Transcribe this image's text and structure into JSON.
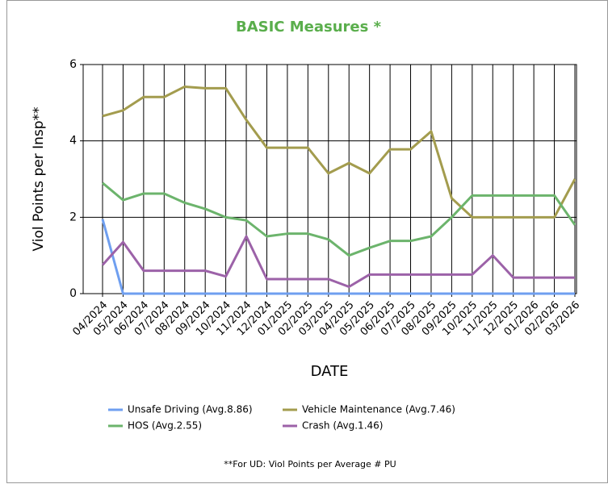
{
  "chart_data": {
    "type": "line",
    "title": "BASIC Measures *",
    "x_label": "DATE",
    "y_label": "Viol Points per Insp**",
    "footnote": "**For UD: Viol Points per Average # PU",
    "categories": [
      "04/2024",
      "05/2024",
      "06/2024",
      "07/2024",
      "08/2024",
      "09/2024",
      "10/2024",
      "11/2024",
      "12/2024",
      "01/2025",
      "02/2025",
      "03/2025",
      "04/2025",
      "05/2025",
      "06/2025",
      "07/2025",
      "08/2025",
      "09/2025",
      "10/2025",
      "11/2025",
      "12/2025",
      "01/2026",
      "02/2026",
      "03/2026"
    ],
    "series": [
      {
        "name": "Unsafe Driving (Avg.8.86)",
        "color": "#6f9ff0",
        "values": [
          1.95,
          0,
          0,
          0,
          0,
          0,
          0,
          0,
          0,
          0,
          0,
          0,
          0,
          0,
          0,
          0,
          0,
          0,
          0,
          0,
          0,
          0,
          0,
          0
        ]
      },
      {
        "name": "Vehicle Maintenance (Avg.7.46)",
        "color": "#a39c4e",
        "values": [
          4.65,
          4.8,
          5.15,
          5.15,
          5.42,
          5.38,
          5.38,
          4.55,
          3.82,
          3.82,
          3.82,
          3.15,
          3.42,
          3.15,
          3.78,
          3.78,
          4.25,
          2.5,
          2.0,
          2.0,
          2.0,
          2.0,
          2.0,
          3.0
        ]
      },
      {
        "name": "HOS (Avg.2.55)",
        "color": "#6cb46c",
        "values": [
          2.9,
          2.45,
          2.62,
          2.62,
          2.38,
          2.22,
          2.0,
          1.92,
          1.5,
          1.57,
          1.57,
          1.42,
          1.0,
          1.2,
          1.38,
          1.38,
          1.5,
          2.0,
          2.57,
          2.57,
          2.57,
          2.57,
          2.57,
          1.8
        ]
      },
      {
        "name": "Crash (Avg.1.46)",
        "color": "#9c62a8",
        "values": [
          0.75,
          1.35,
          0.6,
          0.6,
          0.6,
          0.6,
          0.45,
          1.5,
          0.38,
          0.38,
          0.38,
          0.38,
          0.18,
          0.5,
          0.5,
          0.5,
          0.5,
          0.5,
          0.5,
          1.0,
          0.42,
          0.42,
          0.42,
          0.42
        ]
      }
    ],
    "ylim": [
      0,
      6
    ],
    "yticks": [
      0,
      2,
      4,
      6
    ],
    "grid": true
  }
}
